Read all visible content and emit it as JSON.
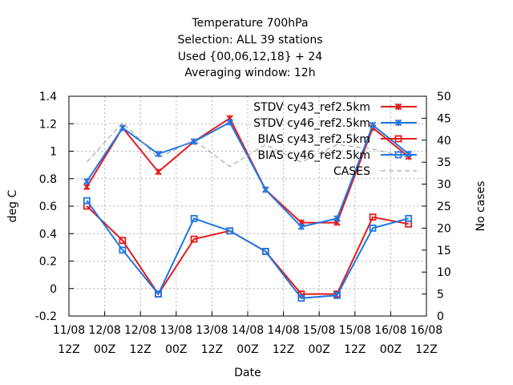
{
  "chart_data": {
    "type": "line",
    "title_lines": [
      "Temperature 700hPa",
      "Selection: ALL      39 stations",
      "Used {00,06,12,18} + 24",
      "Averaging window: 12h"
    ],
    "xlabel": "Date",
    "ylabel": "deg C",
    "y2label": "No cases",
    "ylim": [
      -0.2,
      1.4
    ],
    "y_ticks": [
      "-0.2",
      "0",
      "0.2",
      "0.4",
      "0.6",
      "0.8",
      "1",
      "1.2",
      "1.4"
    ],
    "y2lim": [
      0,
      50
    ],
    "y2_ticks": [
      "0",
      "5",
      "10",
      "15",
      "20",
      "25",
      "30",
      "35",
      "40",
      "45",
      "50"
    ],
    "x_ticks": [
      {
        "line1": "11/08",
        "line2": "12Z"
      },
      {
        "line1": "12/08",
        "line2": "00Z"
      },
      {
        "line1": "12/08",
        "line2": "12Z"
      },
      {
        "line1": "13/08",
        "line2": "00Z"
      },
      {
        "line1": "13/08",
        "line2": "12Z"
      },
      {
        "line1": "14/08",
        "line2": "00Z"
      },
      {
        "line1": "14/08",
        "line2": "12Z"
      },
      {
        "line1": "15/08",
        "line2": "00Z"
      },
      {
        "line1": "15/08",
        "line2": "12Z"
      },
      {
        "line1": "16/08",
        "line2": "00Z"
      },
      {
        "line1": "16/08",
        "line2": "12Z"
      }
    ],
    "x_dates": [
      "11/08 18Z",
      "12/08 06Z",
      "12/08 18Z",
      "13/08 06Z",
      "13/08 18Z",
      "14/08 06Z",
      "14/08 18Z",
      "15/08 06Z",
      "15/08 18Z",
      "16/08 06Z",
      "16/08 12Z"
    ],
    "grid": true,
    "legend_position": "top-right",
    "series": [
      {
        "name": "STDV cy43_ref2.5km",
        "axis": "y1",
        "color": "#e41a1c",
        "marker": "x",
        "values": [
          0.74,
          1.17,
          0.85,
          1.07,
          1.24,
          0.72,
          0.48,
          0.48,
          1.17,
          0.96
        ]
      },
      {
        "name": "STDV cy46_ref2.5km",
        "axis": "y1",
        "color": "#1f78e4",
        "marker": "x",
        "values": [
          0.78,
          1.17,
          0.98,
          1.07,
          1.21,
          0.72,
          0.45,
          0.51,
          1.19,
          0.98
        ]
      },
      {
        "name": "BIAS cy43_ref2.5km",
        "axis": "y1",
        "color": "#e41a1c",
        "marker": "square",
        "values": [
          0.6,
          0.35,
          -0.04,
          0.36,
          0.42,
          0.27,
          -0.04,
          -0.04,
          0.52,
          0.47
        ]
      },
      {
        "name": "BIAS cy46_ref2.5km",
        "axis": "y1",
        "color": "#1f78e4",
        "marker": "square",
        "values": [
          0.64,
          0.28,
          -0.04,
          0.51,
          0.42,
          0.27,
          -0.07,
          -0.05,
          0.44,
          0.51
        ]
      },
      {
        "name": "CASES",
        "axis": "y2",
        "color": "#999999",
        "marker": "none",
        "dashed": true,
        "values": [
          35,
          44,
          36,
          40,
          34,
          39,
          35,
          39,
          38,
          36
        ]
      }
    ]
  }
}
